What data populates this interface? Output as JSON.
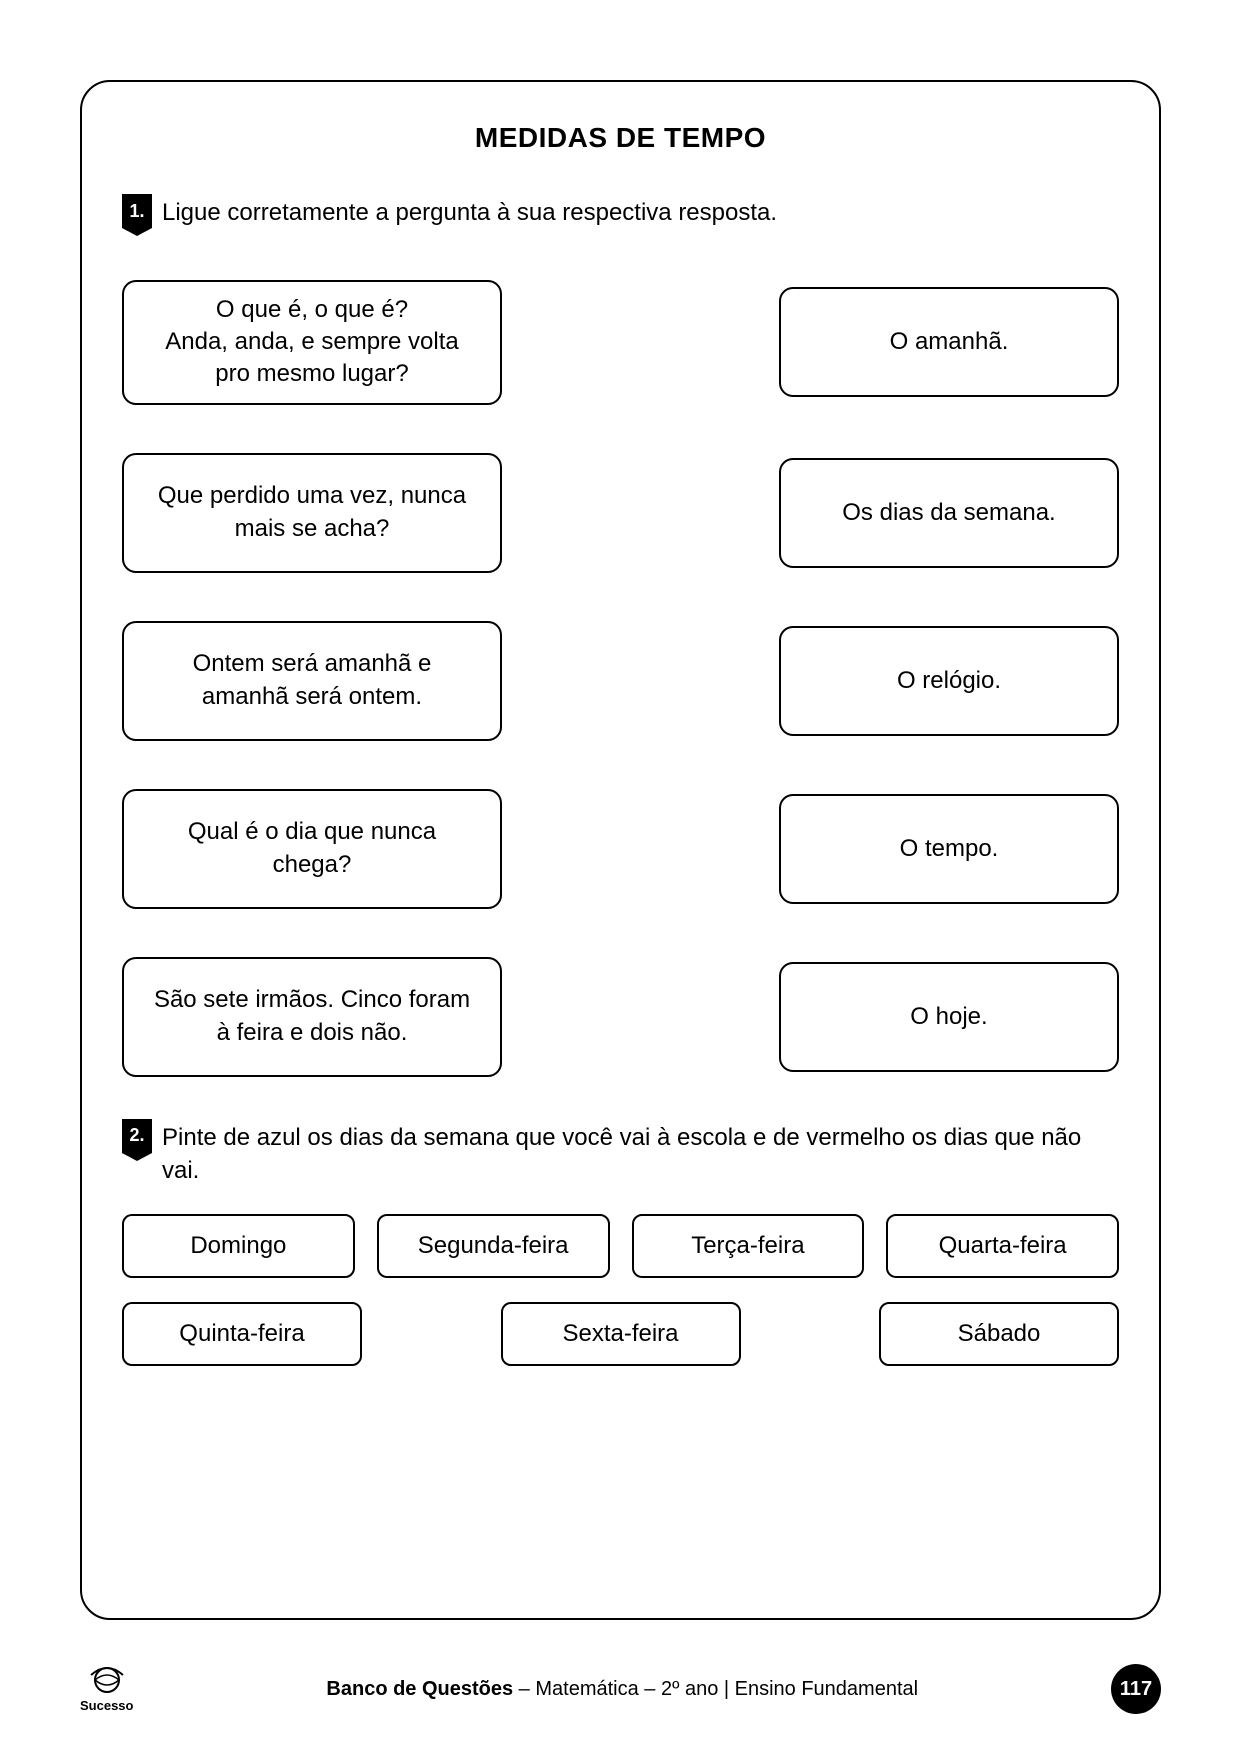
{
  "title": "MEDIDAS DE TEMPO",
  "q1": {
    "num": "1.",
    "text": "Ligue corretamente a pergunta à sua respectiva resposta.",
    "left": [
      "O que é, o que é?\nAnda, anda, e sempre volta\npro mesmo lugar?",
      "Que perdido uma vez, nunca\nmais se acha?",
      "Ontem será amanhã e\namanhã será ontem.",
      "Qual é o dia que nunca\nchega?",
      "São sete irmãos. Cinco foram\nà feira e dois não."
    ],
    "right": [
      "O amanhã.",
      "Os dias da semana.",
      "O relógio.",
      "O tempo.",
      "O hoje."
    ]
  },
  "q2": {
    "num": "2.",
    "text": "Pinte de azul os dias da semana que você vai à escola e de vermelho os dias que não vai.",
    "row1": [
      "Domingo",
      "Segunda-feira",
      "Terça-feira",
      "Quarta-feira"
    ],
    "row2": [
      "Quinta-feira",
      "Sexta-feira",
      "Sábado"
    ]
  },
  "footer": {
    "logo_text": "Sucesso",
    "center_bold": "Banco de Questões",
    "center_rest": " – Matemática – 2º ano | Ensino Fundamental",
    "page": "117"
  },
  "style": {
    "page_bg": "#ffffff",
    "text_color": "#000000",
    "border_color": "#000000",
    "badge_bg": "#000000",
    "badge_fg": "#ffffff",
    "title_fontsize": 28,
    "body_fontsize": 24,
    "footer_fontsize": 20,
    "box_radius": 14,
    "frame_radius": 30
  }
}
